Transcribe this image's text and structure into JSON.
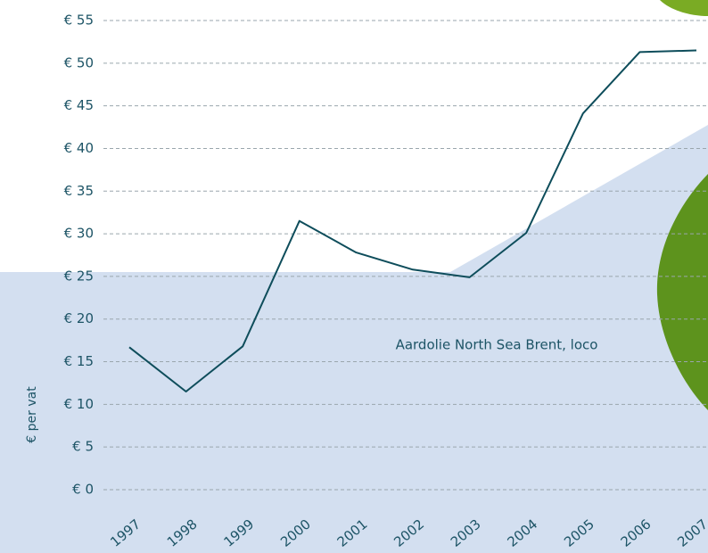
{
  "chart_data": {
    "type": "line",
    "y_axis_label": "€ per vat",
    "categories": [
      "1997",
      "1998",
      "1999",
      "2000",
      "2001",
      "2002",
      "2003",
      "2004",
      "2005",
      "2006",
      "2007"
    ],
    "series": [
      {
        "name": "Aardolie North Sea Brent, loco",
        "color": "#0e4d5b",
        "values": [
          16.7,
          11.5,
          16.8,
          31.5,
          27.8,
          25.8,
          24.9,
          30.1,
          44.1,
          51.3,
          51.5
        ]
      }
    ],
    "ylim": [
      0,
      55
    ],
    "yticks": [
      {
        "value": 0,
        "label": "€ 0"
      },
      {
        "value": 5,
        "label": "€ 5"
      },
      {
        "value": 10,
        "label": "€ 10"
      },
      {
        "value": 15,
        "label": "€ 15"
      },
      {
        "value": 20,
        "label": "€ 20"
      },
      {
        "value": 25,
        "label": "€ 25"
      },
      {
        "value": 30,
        "label": "€ 30"
      },
      {
        "value": 35,
        "label": "€ 35"
      },
      {
        "value": 40,
        "label": "€ 40"
      },
      {
        "value": 45,
        "label": "€ 45"
      },
      {
        "value": 50,
        "label": "€ 50"
      },
      {
        "value": 55,
        "label": "€ 55"
      }
    ],
    "grid": true
  }
}
